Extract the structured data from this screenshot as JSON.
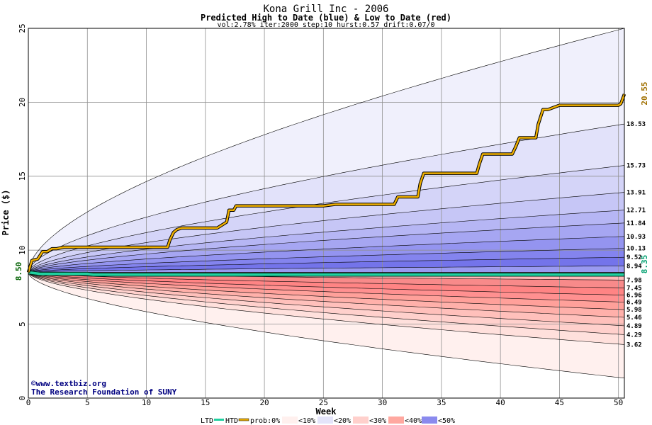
{
  "chart_data": {
    "type": "area",
    "title": "Kona Grill Inc - 2006",
    "subtitle": "Predicted High to Date (blue) &  Low to Date (red)",
    "params": "vol:2.78% iter:2000 step:10 hurst:0.57 drift:0.07/0",
    "xlabel": "Week",
    "ylabel": "Price ($)",
    "xlim": [
      0,
      50.5
    ],
    "ylim": [
      0,
      25
    ],
    "x_ticks": [
      0,
      5,
      10,
      15,
      20,
      25,
      30,
      35,
      40,
      45,
      50
    ],
    "y_ticks": [
      0,
      5,
      10,
      15,
      20,
      25
    ],
    "grid": true,
    "start_price": 8.5,
    "start_price_label": "8.50",
    "htd_final_label": "20.55",
    "ltd_final_label": "8.35",
    "upper_band_labels": [
      "18.53",
      "15.73",
      "13.91",
      "12.71",
      "11.84",
      "10.93",
      "10.13",
      "9.52",
      "8.94"
    ],
    "upper_band_values": [
      18.53,
      15.73,
      13.91,
      12.71,
      11.84,
      10.93,
      10.13,
      9.52,
      8.94
    ],
    "lower_band_labels": [
      "7.98",
      "7.45",
      "6.96",
      "6.49",
      "5.98",
      "5.46",
      "4.89",
      "4.29",
      "3.62"
    ],
    "lower_band_values": [
      7.98,
      7.45,
      6.96,
      6.49,
      5.98,
      5.46,
      4.89,
      4.29,
      3.62
    ],
    "upper_extreme_final": 25.0,
    "lower_extreme_final": 1.35,
    "fill_colors": {
      "blue": [
        "#f0f0fc",
        "#e2e2fa",
        "#d4d4f8",
        "#c6c6f6",
        "#b6b6f4",
        "#a6a6f2",
        "#9494f0",
        "#8484ee",
        "#7474ea",
        "#9a9af0"
      ],
      "red": [
        "#fff0ee",
        "#ffe0dc",
        "#ffd0cc",
        "#ffc0bb",
        "#ffb0aa",
        "#ffa09a",
        "#ff9090",
        "#ff8484",
        "#f88a8a",
        "#ffb8b8"
      ]
    },
    "htd_color": "#f0b000",
    "ltd_color": "#20d0a0",
    "htd": {
      "x": [
        0,
        0.3,
        0.8,
        1.2,
        1.6,
        2.0,
        2.4,
        3,
        5,
        8,
        11,
        11.8,
        12.0,
        12.3,
        12.6,
        13,
        14,
        15,
        16,
        16.8,
        17.0,
        17.4,
        17.6,
        18,
        19,
        20,
        22,
        24,
        25,
        26,
        28,
        30,
        31,
        31.3,
        31.6,
        32,
        33,
        33.2,
        33.5,
        34,
        35,
        36,
        38,
        38.2,
        38.5,
        40,
        41,
        41.3,
        41.6,
        43,
        43.2,
        43.6,
        44,
        45,
        45.3,
        46,
        48,
        50,
        50.2,
        50.5
      ],
      "y": [
        8.5,
        9.3,
        9.4,
        9.9,
        9.9,
        10.1,
        10.1,
        10.2,
        10.2,
        10.2,
        10.2,
        10.2,
        10.7,
        11.2,
        11.4,
        11.5,
        11.5,
        11.5,
        11.5,
        11.9,
        12.7,
        12.7,
        13.0,
        13.0,
        13.0,
        13.0,
        13.0,
        13.0,
        13.0,
        13.1,
        13.1,
        13.1,
        13.1,
        13.6,
        13.6,
        13.6,
        13.6,
        14.5,
        15.2,
        15.2,
        15.2,
        15.2,
        15.2,
        15.8,
        16.5,
        16.5,
        16.5,
        17.0,
        17.6,
        17.6,
        18.5,
        19.5,
        19.5,
        19.8,
        19.8,
        19.8,
        19.8,
        19.8,
        19.9,
        20.55
      ]
    },
    "ltd": {
      "x": [
        0,
        1,
        5,
        5.5,
        6,
        10,
        20,
        30,
        40,
        50,
        50.5
      ],
      "y": [
        8.5,
        8.4,
        8.4,
        8.35,
        8.35,
        8.35,
        8.35,
        8.35,
        8.35,
        8.35,
        8.35
      ]
    },
    "watermark": [
      "©www.textbiz.org",
      "The Research Foundation of SUNY"
    ],
    "legend": {
      "ltd": "LTD",
      "htd": "HTD",
      "prob": "prob:0%",
      "ranges": [
        "<10%",
        "<20%",
        "<30%",
        "<40%",
        "<50%"
      ]
    }
  }
}
